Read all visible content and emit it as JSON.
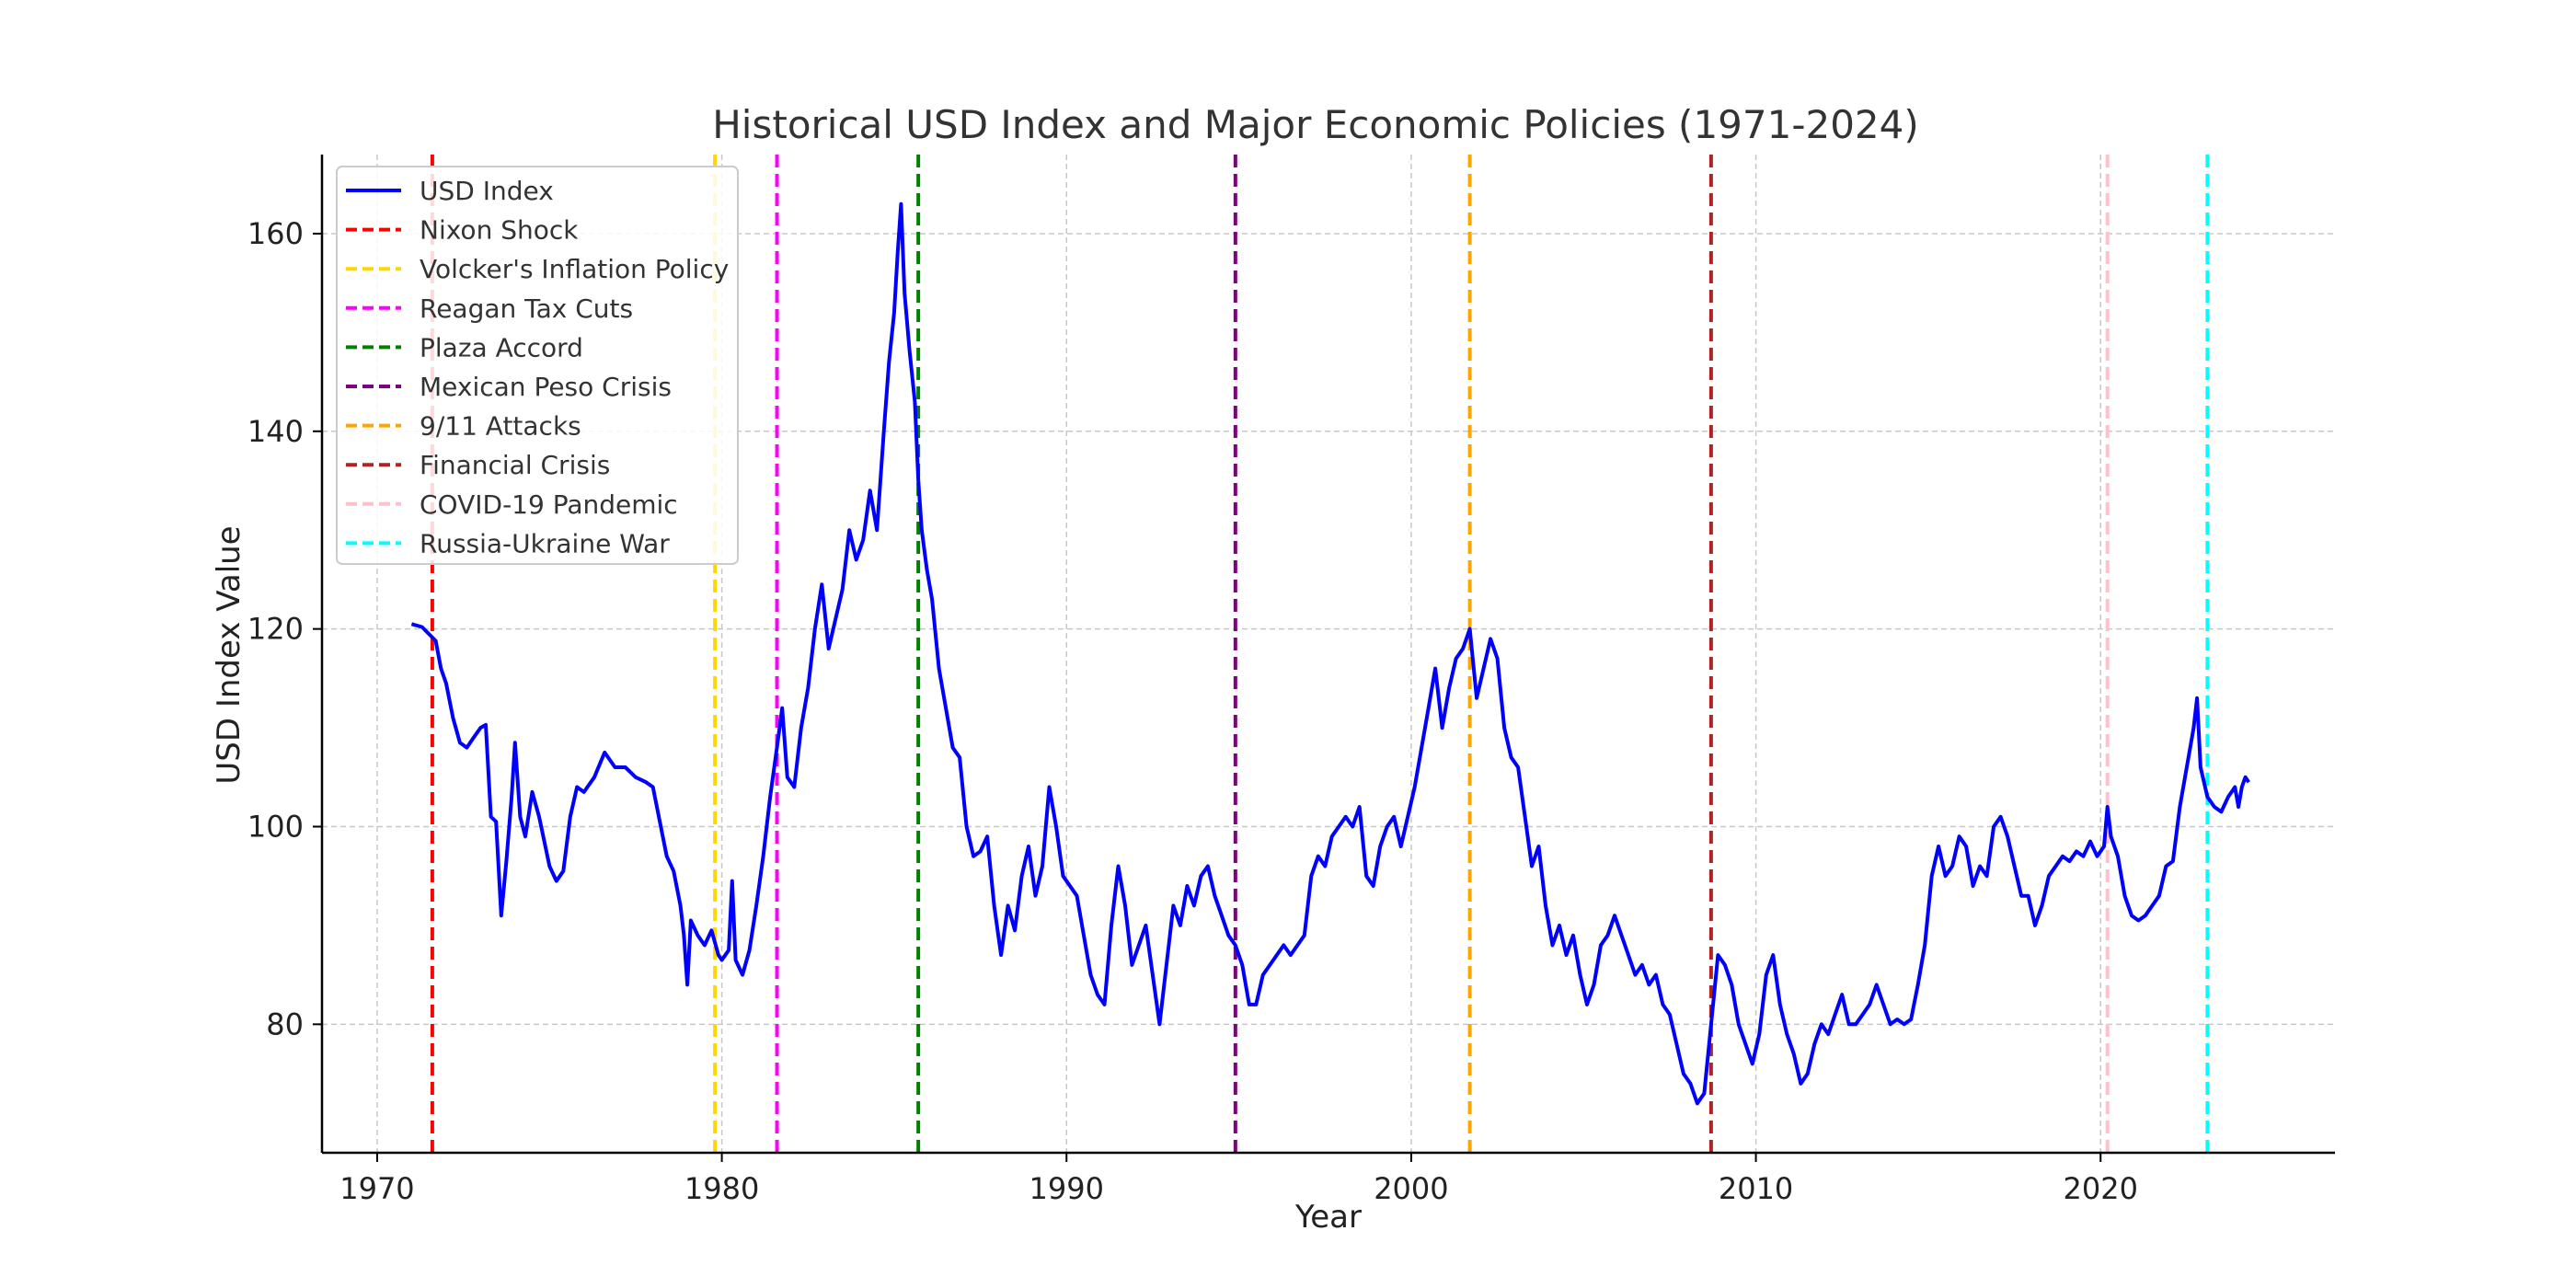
{
  "chart_data": {
    "type": "line",
    "title": "Historical USD Index and Major Economic Policies (1971-2024)",
    "xlabel": "Year",
    "ylabel": "USD Index Value",
    "xlim": [
      1968.4,
      2026.8
    ],
    "ylim": [
      67,
      168
    ],
    "xticks": [
      1970,
      1980,
      1990,
      2000,
      2010,
      2020
    ],
    "yticks": [
      80,
      100,
      120,
      140,
      160
    ],
    "grid": true,
    "legend_position": "top-left",
    "series": [
      {
        "name": "USD Index",
        "color": "#0000ff",
        "points": [
          [
            1971.0,
            120.5
          ],
          [
            1971.3,
            120.2
          ],
          [
            1971.5,
            119.5
          ],
          [
            1971.7,
            118.8
          ],
          [
            1971.85,
            116.0
          ],
          [
            1972.0,
            114.5
          ],
          [
            1972.2,
            111.0
          ],
          [
            1972.4,
            108.5
          ],
          [
            1972.6,
            108.0
          ],
          [
            1972.8,
            109.0
          ],
          [
            1973.0,
            110.0
          ],
          [
            1973.15,
            110.3
          ],
          [
            1973.3,
            101.0
          ],
          [
            1973.45,
            100.5
          ],
          [
            1973.6,
            91.0
          ],
          [
            1973.75,
            96.5
          ],
          [
            1973.9,
            103.0
          ],
          [
            1974.0,
            108.5
          ],
          [
            1974.15,
            101.0
          ],
          [
            1974.3,
            99.0
          ],
          [
            1974.5,
            103.5
          ],
          [
            1974.7,
            101.0
          ],
          [
            1975.0,
            96.0
          ],
          [
            1975.2,
            94.5
          ],
          [
            1975.4,
            95.5
          ],
          [
            1975.6,
            101.0
          ],
          [
            1975.8,
            104.0
          ],
          [
            1976.0,
            103.5
          ],
          [
            1976.3,
            105.0
          ],
          [
            1976.6,
            107.5
          ],
          [
            1976.9,
            106.0
          ],
          [
            1977.2,
            106.0
          ],
          [
            1977.5,
            105.0
          ],
          [
            1977.8,
            104.5
          ],
          [
            1978.0,
            104.0
          ],
          [
            1978.2,
            100.5
          ],
          [
            1978.4,
            97.0
          ],
          [
            1978.6,
            95.5
          ],
          [
            1978.8,
            92.0
          ],
          [
            1978.9,
            89.0
          ],
          [
            1979.0,
            84.0
          ],
          [
            1979.1,
            90.5
          ],
          [
            1979.3,
            89.0
          ],
          [
            1979.5,
            88.0
          ],
          [
            1979.7,
            89.5
          ],
          [
            1979.9,
            87.0
          ],
          [
            1980.0,
            86.5
          ],
          [
            1980.2,
            87.5
          ],
          [
            1980.3,
            94.5
          ],
          [
            1980.4,
            86.5
          ],
          [
            1980.6,
            85.0
          ],
          [
            1980.8,
            87.5
          ],
          [
            1981.0,
            92.0
          ],
          [
            1981.2,
            97.0
          ],
          [
            1981.4,
            103.0
          ],
          [
            1981.6,
            108.0
          ],
          [
            1981.75,
            112.0
          ],
          [
            1981.9,
            105.0
          ],
          [
            1982.1,
            104.0
          ],
          [
            1982.3,
            110.0
          ],
          [
            1982.5,
            114.0
          ],
          [
            1982.7,
            120.0
          ],
          [
            1982.9,
            124.5
          ],
          [
            1983.1,
            118.0
          ],
          [
            1983.3,
            121.0
          ],
          [
            1983.5,
            124.0
          ],
          [
            1983.7,
            130.0
          ],
          [
            1983.9,
            127.0
          ],
          [
            1984.1,
            129.0
          ],
          [
            1984.3,
            134.0
          ],
          [
            1984.5,
            130.0
          ],
          [
            1984.7,
            140.0
          ],
          [
            1984.85,
            147.0
          ],
          [
            1985.0,
            152.0
          ],
          [
            1985.1,
            158.0
          ],
          [
            1985.2,
            163.0
          ],
          [
            1985.3,
            154.0
          ],
          [
            1985.45,
            148.0
          ],
          [
            1985.6,
            143.0
          ],
          [
            1985.7,
            135.0
          ],
          [
            1985.8,
            130.0
          ],
          [
            1985.95,
            126.0
          ],
          [
            1986.1,
            123.0
          ],
          [
            1986.3,
            116.0
          ],
          [
            1986.5,
            112.0
          ],
          [
            1986.7,
            108.0
          ],
          [
            1986.9,
            107.0
          ],
          [
            1987.1,
            100.0
          ],
          [
            1987.3,
            97.0
          ],
          [
            1987.5,
            97.5
          ],
          [
            1987.7,
            99.0
          ],
          [
            1987.9,
            92.0
          ],
          [
            1988.1,
            87.0
          ],
          [
            1988.3,
            92.0
          ],
          [
            1988.5,
            89.5
          ],
          [
            1988.7,
            95.0
          ],
          [
            1988.9,
            98.0
          ],
          [
            1989.1,
            93.0
          ],
          [
            1989.3,
            96.0
          ],
          [
            1989.5,
            104.0
          ],
          [
            1989.7,
            100.0
          ],
          [
            1989.9,
            95.0
          ],
          [
            1990.1,
            94.0
          ],
          [
            1990.3,
            93.0
          ],
          [
            1990.5,
            89.0
          ],
          [
            1990.7,
            85.0
          ],
          [
            1990.9,
            83.0
          ],
          [
            1991.1,
            82.0
          ],
          [
            1991.3,
            90.0
          ],
          [
            1991.5,
            96.0
          ],
          [
            1991.7,
            92.0
          ],
          [
            1991.9,
            86.0
          ],
          [
            1992.1,
            88.0
          ],
          [
            1992.3,
            90.0
          ],
          [
            1992.5,
            85.0
          ],
          [
            1992.7,
            80.0
          ],
          [
            1992.9,
            86.0
          ],
          [
            1993.1,
            92.0
          ],
          [
            1993.3,
            90.0
          ],
          [
            1993.5,
            94.0
          ],
          [
            1993.7,
            92.0
          ],
          [
            1993.9,
            95.0
          ],
          [
            1994.1,
            96.0
          ],
          [
            1994.3,
            93.0
          ],
          [
            1994.5,
            91.0
          ],
          [
            1994.7,
            89.0
          ],
          [
            1994.9,
            88.0
          ],
          [
            1995.1,
            86.0
          ],
          [
            1995.3,
            82.0
          ],
          [
            1995.5,
            82.0
          ],
          [
            1995.7,
            85.0
          ],
          [
            1995.9,
            86.0
          ],
          [
            1996.1,
            87.0
          ],
          [
            1996.3,
            88.0
          ],
          [
            1996.5,
            87.0
          ],
          [
            1996.7,
            88.0
          ],
          [
            1996.9,
            89.0
          ],
          [
            1997.1,
            95.0
          ],
          [
            1997.3,
            97.0
          ],
          [
            1997.5,
            96.0
          ],
          [
            1997.7,
            99.0
          ],
          [
            1997.9,
            100.0
          ],
          [
            1998.1,
            101.0
          ],
          [
            1998.3,
            100.0
          ],
          [
            1998.5,
            102.0
          ],
          [
            1998.7,
            95.0
          ],
          [
            1998.9,
            94.0
          ],
          [
            1999.1,
            98.0
          ],
          [
            1999.3,
            100.0
          ],
          [
            1999.5,
            101.0
          ],
          [
            1999.7,
            98.0
          ],
          [
            1999.9,
            101.0
          ],
          [
            2000.1,
            104.0
          ],
          [
            2000.3,
            108.0
          ],
          [
            2000.5,
            112.0
          ],
          [
            2000.7,
            116.0
          ],
          [
            2000.9,
            110.0
          ],
          [
            2001.1,
            114.0
          ],
          [
            2001.3,
            117.0
          ],
          [
            2001.5,
            118.0
          ],
          [
            2001.7,
            120.0
          ],
          [
            2001.9,
            113.0
          ],
          [
            2002.1,
            116.0
          ],
          [
            2002.3,
            119.0
          ],
          [
            2002.5,
            117.0
          ],
          [
            2002.7,
            110.0
          ],
          [
            2002.9,
            107.0
          ],
          [
            2003.1,
            106.0
          ],
          [
            2003.3,
            101.0
          ],
          [
            2003.5,
            96.0
          ],
          [
            2003.7,
            98.0
          ],
          [
            2003.9,
            92.0
          ],
          [
            2004.1,
            88.0
          ],
          [
            2004.3,
            90.0
          ],
          [
            2004.5,
            87.0
          ],
          [
            2004.7,
            89.0
          ],
          [
            2004.9,
            85.0
          ],
          [
            2005.1,
            82.0
          ],
          [
            2005.3,
            84.0
          ],
          [
            2005.5,
            88.0
          ],
          [
            2005.7,
            89.0
          ],
          [
            2005.9,
            91.0
          ],
          [
            2006.1,
            89.0
          ],
          [
            2006.3,
            87.0
          ],
          [
            2006.5,
            85.0
          ],
          [
            2006.7,
            86.0
          ],
          [
            2006.9,
            84.0
          ],
          [
            2007.1,
            85.0
          ],
          [
            2007.3,
            82.0
          ],
          [
            2007.5,
            81.0
          ],
          [
            2007.7,
            78.0
          ],
          [
            2007.9,
            75.0
          ],
          [
            2008.1,
            74.0
          ],
          [
            2008.3,
            72.0
          ],
          [
            2008.5,
            73.0
          ],
          [
            2008.7,
            80.0
          ],
          [
            2008.9,
            87.0
          ],
          [
            2009.1,
            86.0
          ],
          [
            2009.3,
            84.0
          ],
          [
            2009.5,
            80.0
          ],
          [
            2009.7,
            78.0
          ],
          [
            2009.9,
            76.0
          ],
          [
            2010.1,
            79.0
          ],
          [
            2010.3,
            85.0
          ],
          [
            2010.5,
            87.0
          ],
          [
            2010.7,
            82.0
          ],
          [
            2010.9,
            79.0
          ],
          [
            2011.1,
            77.0
          ],
          [
            2011.3,
            74.0
          ],
          [
            2011.5,
            75.0
          ],
          [
            2011.7,
            78.0
          ],
          [
            2011.9,
            80.0
          ],
          [
            2012.1,
            79.0
          ],
          [
            2012.3,
            81.0
          ],
          [
            2012.5,
            83.0
          ],
          [
            2012.7,
            80.0
          ],
          [
            2012.9,
            80.0
          ],
          [
            2013.1,
            81.0
          ],
          [
            2013.3,
            82.0
          ],
          [
            2013.5,
            84.0
          ],
          [
            2013.7,
            82.0
          ],
          [
            2013.9,
            80.0
          ],
          [
            2014.1,
            80.5
          ],
          [
            2014.3,
            80.0
          ],
          [
            2014.5,
            80.5
          ],
          [
            2014.7,
            84.0
          ],
          [
            2014.9,
            88.0
          ],
          [
            2015.1,
            95.0
          ],
          [
            2015.3,
            98.0
          ],
          [
            2015.5,
            95.0
          ],
          [
            2015.7,
            96.0
          ],
          [
            2015.9,
            99.0
          ],
          [
            2016.1,
            98.0
          ],
          [
            2016.3,
            94.0
          ],
          [
            2016.5,
            96.0
          ],
          [
            2016.7,
            95.0
          ],
          [
            2016.9,
            100.0
          ],
          [
            2017.1,
            101.0
          ],
          [
            2017.3,
            99.0
          ],
          [
            2017.5,
            96.0
          ],
          [
            2017.7,
            93.0
          ],
          [
            2017.9,
            93.0
          ],
          [
            2018.1,
            90.0
          ],
          [
            2018.3,
            92.0
          ],
          [
            2018.5,
            95.0
          ],
          [
            2018.7,
            96.0
          ],
          [
            2018.9,
            97.0
          ],
          [
            2019.1,
            96.5
          ],
          [
            2019.3,
            97.5
          ],
          [
            2019.5,
            97.0
          ],
          [
            2019.7,
            98.5
          ],
          [
            2019.9,
            97.0
          ],
          [
            2020.1,
            98.0
          ],
          [
            2020.2,
            102.0
          ],
          [
            2020.3,
            99.0
          ],
          [
            2020.5,
            97.0
          ],
          [
            2020.7,
            93.0
          ],
          [
            2020.9,
            91.0
          ],
          [
            2021.1,
            90.5
          ],
          [
            2021.3,
            91.0
          ],
          [
            2021.5,
            92.0
          ],
          [
            2021.7,
            93.0
          ],
          [
            2021.9,
            96.0
          ],
          [
            2022.1,
            96.5
          ],
          [
            2022.3,
            102.0
          ],
          [
            2022.5,
            106.0
          ],
          [
            2022.7,
            110.0
          ],
          [
            2022.8,
            113.0
          ],
          [
            2022.9,
            106.0
          ],
          [
            2023.1,
            103.0
          ],
          [
            2023.3,
            102.0
          ],
          [
            2023.5,
            101.5
          ],
          [
            2023.7,
            103.0
          ],
          [
            2023.9,
            104.0
          ],
          [
            2024.0,
            102.0
          ],
          [
            2024.1,
            104.0
          ],
          [
            2024.2,
            105.0
          ],
          [
            2024.3,
            104.5
          ]
        ]
      }
    ],
    "events": [
      {
        "name": "Nixon Shock",
        "year": 1971.6,
        "color": "#ff0000"
      },
      {
        "name": "Volcker's Inflation Policy",
        "year": 1979.8,
        "color": "#ffd700"
      },
      {
        "name": "Reagan Tax Cuts",
        "year": 1981.6,
        "color": "#ff00ff"
      },
      {
        "name": "Plaza Accord",
        "year": 1985.7,
        "color": "#008000"
      },
      {
        "name": "Mexican Peso Crisis",
        "year": 1994.9,
        "color": "#800080"
      },
      {
        "name": "9/11 Attacks",
        "year": 2001.7,
        "color": "#ffa500"
      },
      {
        "name": "Financial Crisis",
        "year": 2008.7,
        "color": "#b22222"
      },
      {
        "name": "COVID-19 Pandemic",
        "year": 2020.2,
        "color": "#ffc0cb"
      },
      {
        "name": "Russia-Ukraine War",
        "year": 2023.1,
        "color": "#00ffff"
      }
    ]
  }
}
